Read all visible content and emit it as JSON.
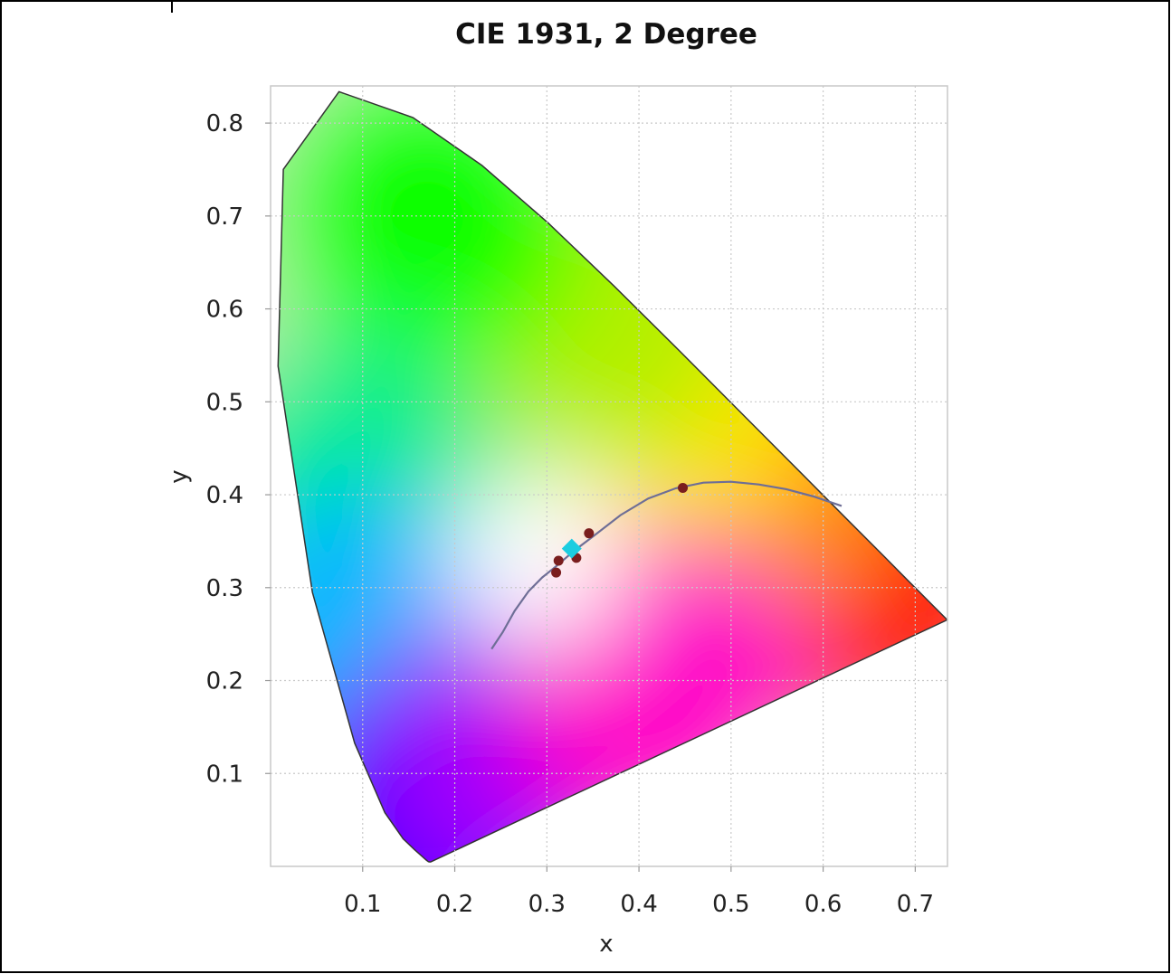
{
  "chart_data": {
    "type": "scatter",
    "title": "CIE 1931, 2 Degree",
    "xlabel": "x",
    "ylabel": "y",
    "xlim": [
      0.0,
      0.735
    ],
    "ylim": [
      0.0,
      0.84
    ],
    "x_ticks": [
      {
        "value": 0.1,
        "label": "0.1"
      },
      {
        "value": 0.2,
        "label": "0.2"
      },
      {
        "value": 0.3,
        "label": "0.3"
      },
      {
        "value": 0.4,
        "label": "0.4"
      },
      {
        "value": 0.5,
        "label": "0.5"
      },
      {
        "value": 0.6,
        "label": "0.6"
      },
      {
        "value": 0.7,
        "label": "0.7"
      }
    ],
    "y_ticks": [
      {
        "value": 0.1,
        "label": "0.1"
      },
      {
        "value": 0.2,
        "label": "0.2"
      },
      {
        "value": 0.3,
        "label": "0.3"
      },
      {
        "value": 0.4,
        "label": "0.4"
      },
      {
        "value": 0.5,
        "label": "0.5"
      },
      {
        "value": 0.6,
        "label": "0.6"
      },
      {
        "value": 0.7,
        "label": "0.7"
      },
      {
        "value": 0.8,
        "label": "0.8"
      }
    ],
    "grid": true,
    "gamut_boundary": {
      "x": [
        0.1741,
        0.1738,
        0.173,
        0.1714,
        0.1689,
        0.1644,
        0.1566,
        0.144,
        0.1241,
        0.0913,
        0.0454,
        0.0082,
        0.0139,
        0.0743,
        0.1547,
        0.2296,
        0.3016,
        0.3731,
        0.4441,
        0.5125,
        0.5752,
        0.627,
        0.6658,
        0.6915,
        0.7079,
        0.719,
        0.7347
      ],
      "y": [
        0.005,
        0.0049,
        0.0048,
        0.0051,
        0.0069,
        0.0109,
        0.0177,
        0.0297,
        0.0578,
        0.1327,
        0.295,
        0.5384,
        0.7502,
        0.8338,
        0.8059,
        0.7543,
        0.6923,
        0.6245,
        0.5547,
        0.4866,
        0.4242,
        0.3725,
        0.334,
        0.3083,
        0.292,
        0.2809,
        0.2653
      ]
    },
    "gamut_colors": [
      {
        "name": "red",
        "x": 0.66,
        "y": 0.3,
        "color": "#ff0010"
      },
      {
        "name": "orange",
        "x": 0.52,
        "y": 0.42,
        "color": "#ff8c00"
      },
      {
        "name": "yellow",
        "x": 0.43,
        "y": 0.52,
        "color": "#ffe400"
      },
      {
        "name": "yellow-green",
        "x": 0.34,
        "y": 0.6,
        "color": "#b4f000"
      },
      {
        "name": "green",
        "x": 0.17,
        "y": 0.7,
        "color": "#10ff00"
      },
      {
        "name": "blue-green",
        "x": 0.09,
        "y": 0.4,
        "color": "#00ee90"
      },
      {
        "name": "cyan-blue",
        "x": 0.1,
        "y": 0.24,
        "color": "#00b8ff"
      },
      {
        "name": "blue",
        "x": 0.17,
        "y": 0.05,
        "color": "#1a00ff"
      },
      {
        "name": "violet",
        "x": 0.27,
        "y": 0.12,
        "color": "#9900ff"
      },
      {
        "name": "magenta",
        "x": 0.42,
        "y": 0.19,
        "color": "#ff00c8"
      },
      {
        "name": "white",
        "x": 0.29,
        "y": 0.33,
        "color": "#ffffff"
      }
    ],
    "planckian_locus": {
      "x": [
        0.24,
        0.252,
        0.265,
        0.28,
        0.295,
        0.31,
        0.33,
        0.35,
        0.38,
        0.41,
        0.44,
        0.47,
        0.5,
        0.53,
        0.56,
        0.59,
        0.62
      ],
      "y": [
        0.234,
        0.252,
        0.275,
        0.296,
        0.311,
        0.323,
        0.34,
        0.355,
        0.378,
        0.396,
        0.407,
        0.413,
        0.414,
        0.411,
        0.406,
        0.398,
        0.388
      ]
    },
    "series": [
      {
        "x": [
          0.3101,
          0.3127,
          0.332,
          0.3457,
          0.4476
        ],
        "y": [
          0.3162,
          0.329,
          0.332,
          0.3585,
          0.4074
        ],
        "marker": "circle",
        "color": "#7a1e1e"
      },
      {
        "x": [
          0.327
        ],
        "y": [
          0.342
        ],
        "marker": "diamond",
        "color": "#1ccde0"
      }
    ],
    "colors": {
      "grid": "#c9c9c9",
      "locus": "#6e6e96",
      "frame": "#000000",
      "plot_border": "#c8c8c8"
    }
  }
}
